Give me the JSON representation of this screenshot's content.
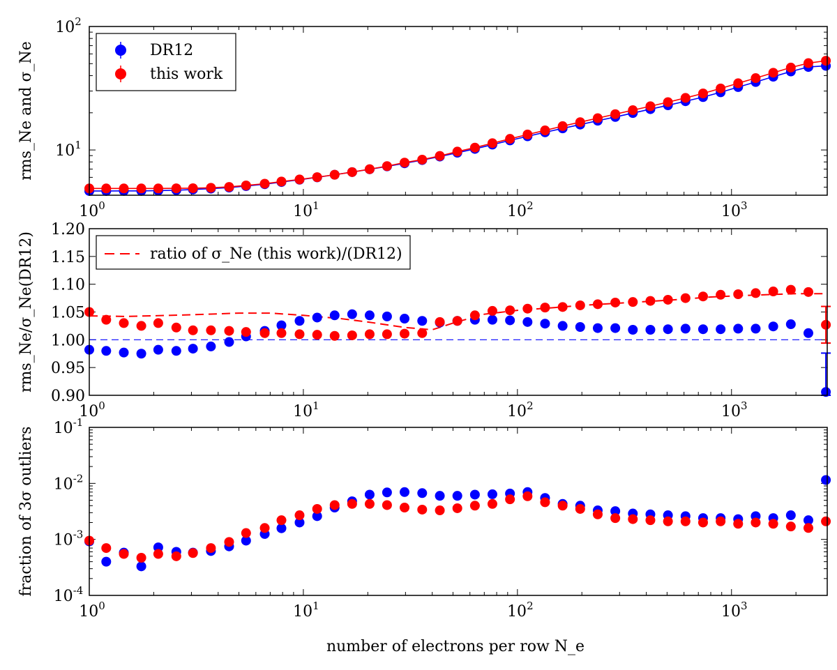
{
  "colors": {
    "dr12": "#0000ff",
    "this_work": "#ff0000"
  },
  "xlabel": "number of electrons per row N_e",
  "chart_data": [
    {
      "type": "scatter",
      "xscale": "log",
      "yscale": "log",
      "xlim": [
        1,
        2800
      ],
      "ylim": [
        4.3,
        100
      ],
      "ylabel": "rms_Ne and σ_Ne",
      "legend": {
        "placement": "top-left",
        "entries": [
          "DR12",
          "this work"
        ]
      },
      "x": [
        1.0,
        1.2,
        1.45,
        1.75,
        2.1,
        2.55,
        3.05,
        3.7,
        4.5,
        5.4,
        6.6,
        7.9,
        9.6,
        11.6,
        14.0,
        16.9,
        20.4,
        24.6,
        29.7,
        35.9,
        43.4,
        52.4,
        63.3,
        76.4,
        92.3,
        111.5,
        134.6,
        162.6,
        196.4,
        237.2,
        286.5,
        346.0,
        417.9,
        504.8,
        609.7,
        736.4,
        889.5,
        1074,
        1297,
        1567,
        1893,
        2286,
        2760
      ],
      "series": [
        {
          "name": "DR12",
          "values": [
            4.65,
            4.65,
            4.66,
            4.66,
            4.68,
            4.72,
            4.78,
            4.86,
            4.96,
            5.1,
            5.28,
            5.5,
            5.74,
            6.0,
            6.3,
            6.62,
            6.97,
            7.36,
            7.8,
            8.28,
            8.84,
            9.5,
            10.2,
            11.05,
            11.95,
            12.9,
            13.9,
            14.95,
            16.05,
            17.25,
            18.5,
            19.9,
            21.4,
            23.0,
            24.8,
            26.8,
            29.3,
            32.3,
            35.5,
            39.2,
            43.2,
            47.0,
            48.0
          ]
        },
        {
          "name": "this work",
          "values": [
            4.88,
            4.88,
            4.88,
            4.88,
            4.88,
            4.89,
            4.9,
            4.94,
            5.02,
            5.16,
            5.33,
            5.55,
            5.77,
            6.02,
            6.3,
            6.62,
            6.99,
            7.4,
            7.9,
            8.35,
            8.95,
            9.7,
            10.45,
            11.35,
            12.3,
            13.35,
            14.4,
            15.6,
            16.8,
            18.1,
            19.5,
            21.0,
            22.6,
            24.4,
            26.4,
            28.7,
            31.5,
            34.7,
            38.2,
            42.2,
            46.5,
            50.5,
            52.8
          ]
        }
      ]
    },
    {
      "type": "scatter",
      "xscale": "log",
      "xlim": [
        1,
        2800
      ],
      "ylim": [
        0.9,
        1.2
      ],
      "yticks": [
        "0.90",
        "0.95",
        "1.00",
        "1.05",
        "1.10",
        "1.15",
        "1.20"
      ],
      "ylabel": "rms_Ne/σ_Ne(DR12)",
      "legend": {
        "placement": "top-left",
        "entries": [
          "ratio of σ_Ne (this work)/(DR12)"
        ]
      },
      "x": [
        1.0,
        1.2,
        1.45,
        1.75,
        2.1,
        2.55,
        3.05,
        3.7,
        4.5,
        5.4,
        6.6,
        7.9,
        9.6,
        11.6,
        14.0,
        16.9,
        20.4,
        24.6,
        29.7,
        35.9,
        43.4,
        52.4,
        63.3,
        76.4,
        92.3,
        111.5,
        134.6,
        162.6,
        196.4,
        237.2,
        286.5,
        346.0,
        417.9,
        504.8,
        609.7,
        736.4,
        889.5,
        1074,
        1297,
        1567,
        1893,
        2286,
        2760
      ],
      "series": [
        {
          "name": "DR12",
          "values": [
            0.982,
            0.98,
            0.977,
            0.975,
            0.982,
            0.98,
            0.984,
            0.988,
            0.996,
            1.006,
            1.016,
            1.026,
            1.034,
            1.04,
            1.044,
            1.046,
            1.044,
            1.042,
            1.038,
            1.034,
            1.031,
            1.034,
            1.036,
            1.036,
            1.035,
            1.032,
            1.029,
            1.025,
            1.023,
            1.021,
            1.021,
            1.018,
            1.018,
            1.019,
            1.02,
            1.019,
            1.019,
            1.02,
            1.02,
            1.024,
            1.028,
            1.012,
            0.906
          ],
          "error_last": 0.07
        },
        {
          "name": "this work",
          "values": [
            1.05,
            1.036,
            1.03,
            1.025,
            1.03,
            1.022,
            1.017,
            1.017,
            1.016,
            1.014,
            1.012,
            1.012,
            1.01,
            1.009,
            1.007,
            1.008,
            1.01,
            1.01,
            1.011,
            1.012,
            1.032,
            1.034,
            1.044,
            1.052,
            1.053,
            1.056,
            1.058,
            1.059,
            1.062,
            1.064,
            1.067,
            1.068,
            1.07,
            1.072,
            1.075,
            1.078,
            1.081,
            1.082,
            1.084,
            1.087,
            1.09,
            1.086,
            1.027
          ],
          "error_last": 0.033
        }
      ],
      "ratio_line": {
        "x": [
          1.0,
          1.5,
          3,
          5,
          7,
          10,
          15,
          20,
          30,
          40,
          50,
          70,
          100,
          150,
          200,
          300,
          500,
          800,
          1200,
          2000,
          2760
        ],
        "y": [
          1.043,
          1.042,
          1.045,
          1.048,
          1.048,
          1.044,
          1.038,
          1.032,
          1.022,
          1.018,
          1.03,
          1.046,
          1.053,
          1.058,
          1.062,
          1.066,
          1.071,
          1.077,
          1.08,
          1.083,
          1.083
        ]
      },
      "reference_line": 1.0
    },
    {
      "type": "scatter",
      "xscale": "log",
      "yscale": "log",
      "xlim": [
        1,
        2800
      ],
      "ylim": [
        0.0001,
        0.1
      ],
      "ylabel": "fraction of 3σ outliers",
      "x": [
        1.0,
        1.2,
        1.45,
        1.75,
        2.1,
        2.55,
        3.05,
        3.7,
        4.5,
        5.4,
        6.6,
        7.9,
        9.6,
        11.6,
        14.0,
        16.9,
        20.4,
        24.6,
        29.7,
        35.9,
        43.4,
        52.4,
        63.3,
        76.4,
        92.3,
        111.5,
        134.6,
        162.6,
        196.4,
        237.2,
        286.5,
        346.0,
        417.9,
        504.8,
        609.7,
        736.4,
        889.5,
        1074,
        1297,
        1567,
        1893,
        2286,
        2760
      ],
      "series": [
        {
          "name": "DR12",
          "values": [
            0.00092,
            0.0004,
            0.00058,
            0.00033,
            0.00072,
            0.0006,
            0.00058,
            0.00062,
            0.00075,
            0.00095,
            0.00125,
            0.00158,
            0.002,
            0.0026,
            0.0037,
            0.0048,
            0.0063,
            0.0069,
            0.007,
            0.0067,
            0.006,
            0.006,
            0.0063,
            0.0064,
            0.0066,
            0.007,
            0.0055,
            0.0043,
            0.004,
            0.0033,
            0.0032,
            0.0029,
            0.0028,
            0.0027,
            0.0026,
            0.0024,
            0.0024,
            0.0023,
            0.0026,
            0.0024,
            0.0027,
            0.0022,
            0.0115
          ]
        },
        {
          "name": "this work",
          "values": [
            0.00095,
            0.0007,
            0.00055,
            0.00047,
            0.00055,
            0.0005,
            0.00057,
            0.0007,
            0.0009,
            0.0013,
            0.0016,
            0.0022,
            0.0027,
            0.0035,
            0.0041,
            0.0043,
            0.0043,
            0.0041,
            0.0037,
            0.0034,
            0.0033,
            0.0036,
            0.004,
            0.0043,
            0.0052,
            0.0059,
            0.0046,
            0.004,
            0.0035,
            0.0028,
            0.0024,
            0.0023,
            0.0022,
            0.0021,
            0.0021,
            0.002,
            0.0021,
            0.0019,
            0.002,
            0.0019,
            0.0017,
            0.0016,
            0.0021
          ]
        }
      ]
    }
  ]
}
